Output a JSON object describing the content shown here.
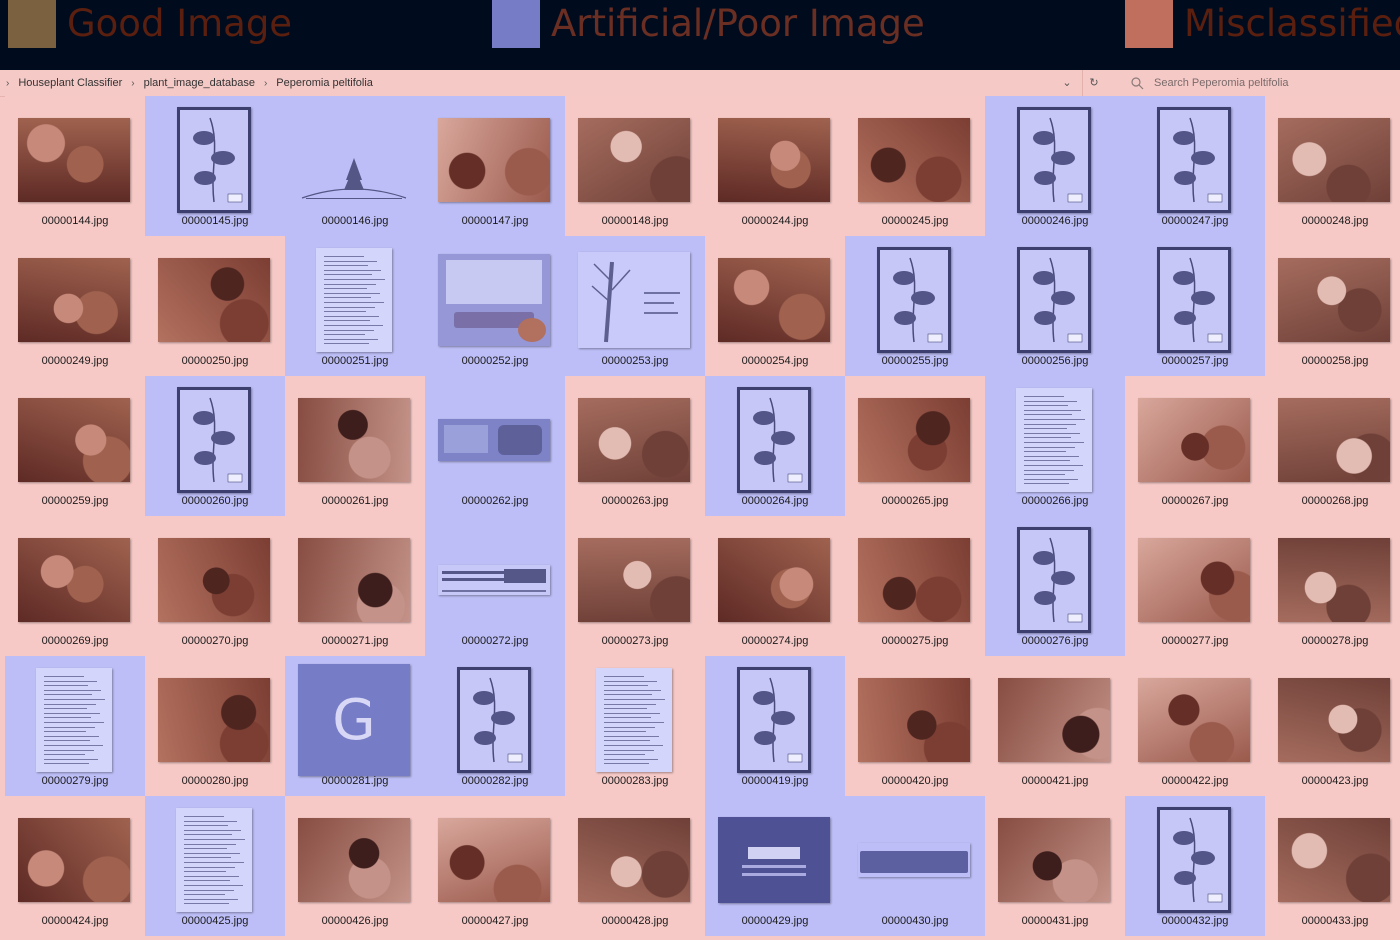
{
  "legend": [
    {
      "label": "Good Image",
      "swatch": "#7c6140",
      "text": "#5a1f0f"
    },
    {
      "label": "Artificial/Poor Image",
      "swatch": "#767cc6",
      "text": "#6a2e22"
    },
    {
      "label": "Misclassified",
      "swatch": "#c06e5d",
      "text": "#5a1f0f"
    }
  ],
  "breadcrumb": [
    "Houseplant Classifier",
    "plant_image_database",
    "Peperomia peltifolia"
  ],
  "search": {
    "placeholder": "Search Peperomia peltifolia"
  },
  "colors": {
    "good": "#f6c9c6",
    "poor": "#bdbef7"
  },
  "files": [
    {
      "name": "00000144.jpg",
      "cls": "good",
      "kind": "photo"
    },
    {
      "name": "00000145.jpg",
      "cls": "poor",
      "kind": "herbarium"
    },
    {
      "name": "00000146.jpg",
      "cls": "poor",
      "kind": "logo"
    },
    {
      "name": "00000147.jpg",
      "cls": "poor",
      "kind": "photo"
    },
    {
      "name": "00000148.jpg",
      "cls": "good",
      "kind": "photo"
    },
    {
      "name": "00000244.jpg",
      "cls": "good",
      "kind": "photo"
    },
    {
      "name": "00000245.jpg",
      "cls": "good",
      "kind": "photo"
    },
    {
      "name": "00000246.jpg",
      "cls": "poor",
      "kind": "herbarium"
    },
    {
      "name": "00000247.jpg",
      "cls": "poor",
      "kind": "herbarium"
    },
    {
      "name": "00000248.jpg",
      "cls": "good",
      "kind": "photo"
    },
    {
      "name": "00000249.jpg",
      "cls": "good",
      "kind": "photo"
    },
    {
      "name": "00000250.jpg",
      "cls": "good",
      "kind": "photo"
    },
    {
      "name": "00000251.jpg",
      "cls": "poor",
      "kind": "doc"
    },
    {
      "name": "00000252.jpg",
      "cls": "poor",
      "kind": "seed"
    },
    {
      "name": "00000253.jpg",
      "cls": "poor",
      "kind": "sketch"
    },
    {
      "name": "00000254.jpg",
      "cls": "good",
      "kind": "photo"
    },
    {
      "name": "00000255.jpg",
      "cls": "poor",
      "kind": "herbarium"
    },
    {
      "name": "00000256.jpg",
      "cls": "poor",
      "kind": "herbarium"
    },
    {
      "name": "00000257.jpg",
      "cls": "poor",
      "kind": "herbarium"
    },
    {
      "name": "00000258.jpg",
      "cls": "good",
      "kind": "photo"
    },
    {
      "name": "00000259.jpg",
      "cls": "good",
      "kind": "photo"
    },
    {
      "name": "00000260.jpg",
      "cls": "poor",
      "kind": "herbarium"
    },
    {
      "name": "00000261.jpg",
      "cls": "good",
      "kind": "photo"
    },
    {
      "name": "00000262.jpg",
      "cls": "poor",
      "kind": "banner"
    },
    {
      "name": "00000263.jpg",
      "cls": "good",
      "kind": "photo"
    },
    {
      "name": "00000264.jpg",
      "cls": "poor",
      "kind": "herbarium"
    },
    {
      "name": "00000265.jpg",
      "cls": "good",
      "kind": "photo"
    },
    {
      "name": "00000266.jpg",
      "cls": "poor",
      "kind": "doc"
    },
    {
      "name": "00000267.jpg",
      "cls": "good",
      "kind": "photo"
    },
    {
      "name": "00000268.jpg",
      "cls": "good",
      "kind": "photo"
    },
    {
      "name": "00000269.jpg",
      "cls": "good",
      "kind": "photo"
    },
    {
      "name": "00000270.jpg",
      "cls": "good",
      "kind": "photo"
    },
    {
      "name": "00000271.jpg",
      "cls": "good",
      "kind": "photo"
    },
    {
      "name": "00000272.jpg",
      "cls": "poor",
      "kind": "aspca-banner"
    },
    {
      "name": "00000273.jpg",
      "cls": "good",
      "kind": "photo"
    },
    {
      "name": "00000274.jpg",
      "cls": "good",
      "kind": "photo"
    },
    {
      "name": "00000275.jpg",
      "cls": "good",
      "kind": "photo"
    },
    {
      "name": "00000276.jpg",
      "cls": "poor",
      "kind": "herbarium"
    },
    {
      "name": "00000277.jpg",
      "cls": "good",
      "kind": "photo"
    },
    {
      "name": "00000278.jpg",
      "cls": "good",
      "kind": "photo"
    },
    {
      "name": "00000279.jpg",
      "cls": "poor",
      "kind": "doc"
    },
    {
      "name": "00000280.jpg",
      "cls": "good",
      "kind": "photo"
    },
    {
      "name": "00000281.jpg",
      "cls": "poor",
      "kind": "letter"
    },
    {
      "name": "00000282.jpg",
      "cls": "poor",
      "kind": "herbarium"
    },
    {
      "name": "00000283.jpg",
      "cls": "good",
      "kind": "doc"
    },
    {
      "name": "00000419.jpg",
      "cls": "poor",
      "kind": "herbarium"
    },
    {
      "name": "00000420.jpg",
      "cls": "good",
      "kind": "photo"
    },
    {
      "name": "00000421.jpg",
      "cls": "good",
      "kind": "photo"
    },
    {
      "name": "00000422.jpg",
      "cls": "good",
      "kind": "photo"
    },
    {
      "name": "00000423.jpg",
      "cls": "good",
      "kind": "photo"
    },
    {
      "name": "00000424.jpg",
      "cls": "good",
      "kind": "photo"
    },
    {
      "name": "00000425.jpg",
      "cls": "poor",
      "kind": "doc"
    },
    {
      "name": "00000426.jpg",
      "cls": "good",
      "kind": "photo"
    },
    {
      "name": "00000427.jpg",
      "cls": "good",
      "kind": "photo"
    },
    {
      "name": "00000428.jpg",
      "cls": "good",
      "kind": "photo"
    },
    {
      "name": "00000429.jpg",
      "cls": "poor",
      "kind": "cover"
    },
    {
      "name": "00000430.jpg",
      "cls": "poor",
      "kind": "aspca"
    },
    {
      "name": "00000431.jpg",
      "cls": "good",
      "kind": "photo"
    },
    {
      "name": "00000432.jpg",
      "cls": "poor",
      "kind": "herbarium"
    },
    {
      "name": "00000433.jpg",
      "cls": "good",
      "kind": "photo"
    }
  ]
}
